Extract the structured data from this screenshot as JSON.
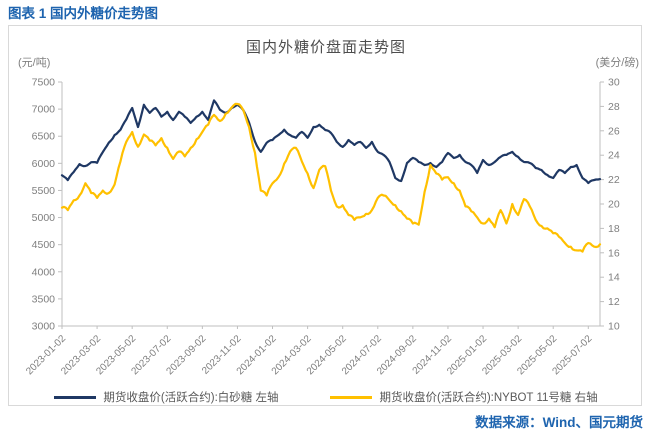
{
  "figure_label": "图表 1 国内外糖价走势图",
  "source_note": "数据来源：Wind、国元期货",
  "colors": {
    "accent_blue": "#1E64AF",
    "axis_gray": "#BFBFBF",
    "tick_text_gray": "#7F7F7F",
    "title_gray": "#4D4D4D",
    "border_gray": "#D9D9D9",
    "series_navy": "#1F3864",
    "series_gold": "#FFC000"
  },
  "chart_data": {
    "type": "line",
    "title": "国内外糖价盘面走势图",
    "grid": false,
    "legend_position": "bottom",
    "left_axis": {
      "unit": "(元/吨)",
      "min": 3000,
      "max": 7500,
      "tick_step": 500
    },
    "right_axis": {
      "unit": "(美分/磅)",
      "min": 10,
      "max": 30,
      "tick_step": 2
    },
    "x_tick_labels": [
      "2023-01-02",
      "2023-03-02",
      "2023-05-02",
      "2023-07-02",
      "2023-09-02",
      "2023-11-02",
      "2024-01-02",
      "2024-03-02",
      "2024-05-02",
      "2024-07-02",
      "2024-09-02",
      "2024-11-02",
      "2025-01-02",
      "2025-03-02",
      "2025-05-02",
      "2025-07-02"
    ],
    "points_per_label_interval": 6,
    "sampling": "approx 3 points per month, 2023-01 to 2025-07",
    "series": [
      {
        "name": "期货收盘价(活跃合约):白砂糖 左轴",
        "axis": "left",
        "color": "#1F3864",
        "values": [
          5780,
          5690,
          5840,
          5985,
          5950,
          6020,
          6010,
          6210,
          6380,
          6520,
          6620,
          6810,
          7020,
          6670,
          7080,
          6930,
          7020,
          6860,
          6950,
          6800,
          6950,
          6860,
          6745,
          6860,
          6950,
          6800,
          7160,
          6990,
          6930,
          7020,
          7080,
          6980,
          6750,
          6400,
          6210,
          6380,
          6430,
          6520,
          6620,
          6520,
          6470,
          6580,
          6470,
          6670,
          6710,
          6615,
          6560,
          6395,
          6303,
          6430,
          6340,
          6395,
          6284,
          6395,
          6210,
          6155,
          6025,
          5730,
          5675,
          6007,
          6100,
          6025,
          5970,
          6007,
          5933,
          6025,
          6191,
          6099,
          6155,
          6025,
          5970,
          5822,
          6062,
          5970,
          6025,
          6118,
          6155,
          6210,
          6118,
          6025,
          6007,
          5914,
          5877,
          5785,
          5730,
          5877,
          5822,
          5933,
          5970,
          5730,
          5638,
          5693,
          5710
        ]
      },
      {
        "name": "期货收盘价(活跃合约):NYBOT 11号糖 右轴",
        "axis": "right",
        "color": "#FFC000",
        "values": [
          19.7,
          19.5,
          20.3,
          20.7,
          21.7,
          20.9,
          20.5,
          21.1,
          20.9,
          21.6,
          23.5,
          25.1,
          25.9,
          24.7,
          25.7,
          25.2,
          24.8,
          25.4,
          24.6,
          23.7,
          24.3,
          23.9,
          24.6,
          25.3,
          25.9,
          26.5,
          27.3,
          26.8,
          27.4,
          27.9,
          28.2,
          27.7,
          26.3,
          24.2,
          21.1,
          20.7,
          21.7,
          22.2,
          23.3,
          24.3,
          24.6,
          23.5,
          22.5,
          21.3,
          22.8,
          23.1,
          21.1,
          19.8,
          19.9,
          19.1,
          18.7,
          18.9,
          19.2,
          19.5,
          20.5,
          20.7,
          20.3,
          19.9,
          19.4,
          18.8,
          18.4,
          18.3,
          21.0,
          23.2,
          22.5,
          22.0,
          22.2,
          21.7,
          21.1,
          19.8,
          19.4,
          18.9,
          18.4,
          18.8,
          18.1,
          19.5,
          18.4,
          20.0,
          19.1,
          20.4,
          19.8,
          18.7,
          18.2,
          18.0,
          17.6,
          17.3,
          16.8,
          16.5,
          16.2,
          16.1,
          16.8,
          16.5,
          16.7
        ]
      }
    ]
  }
}
